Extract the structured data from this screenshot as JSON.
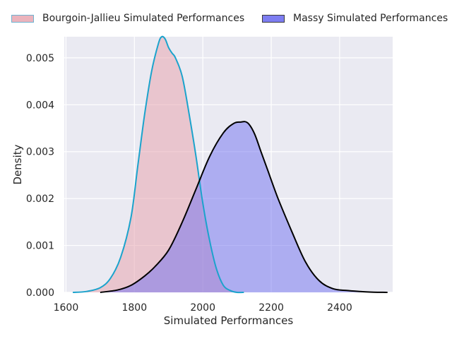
{
  "chart_data": {
    "type": "area",
    "title": "",
    "xlabel": "Simulated Performances",
    "ylabel": "Density",
    "xlim": [
      1595,
      2555
    ],
    "ylim": [
      0,
      0.00545
    ],
    "x_ticks": [
      1600,
      1800,
      2000,
      2200,
      2400
    ],
    "x_tick_labels": [
      "1600",
      "1800",
      "2000",
      "2200",
      "2400"
    ],
    "y_ticks": [
      0,
      0.001,
      0.002,
      0.003,
      0.004,
      0.005
    ],
    "y_tick_labels": [
      "0.000",
      "0.001",
      "0.002",
      "0.003",
      "0.004",
      "0.005"
    ],
    "grid": true,
    "legend_position": "top",
    "series": [
      {
        "name": "Bourgoin-Jallieu Simulated Performances",
        "fill_color": "#e8a6b0",
        "line_color": "#1ba3cc",
        "x": [
          1620,
          1660,
          1700,
          1730,
          1760,
          1790,
          1810,
          1830,
          1850,
          1870,
          1880,
          1890,
          1900,
          1910,
          1920,
          1940,
          1960,
          1980,
          2000,
          2020,
          2040,
          2060,
          2080,
          2100,
          2120
        ],
        "y": [
          0.0,
          2e-05,
          0.0001,
          0.0003,
          0.00075,
          0.0016,
          0.0027,
          0.0038,
          0.0047,
          0.0053,
          0.00545,
          0.0054,
          0.00522,
          0.0051,
          0.005,
          0.0046,
          0.0038,
          0.0029,
          0.0019,
          0.0011,
          0.0005,
          0.00015,
          4e-05,
          0.0,
          0.0
        ]
      },
      {
        "name": "Massy Simulated Performances",
        "fill_color": "#6f6ff0",
        "line_color": "#000000",
        "x": [
          1700,
          1750,
          1790,
          1830,
          1860,
          1900,
          1940,
          1980,
          2020,
          2060,
          2090,
          2110,
          2130,
          2150,
          2170,
          2190,
          2220,
          2260,
          2300,
          2340,
          2380,
          2420,
          2460,
          2500,
          2540
        ],
        "y": [
          0.0,
          5e-05,
          0.00015,
          0.00035,
          0.00055,
          0.0009,
          0.0015,
          0.0022,
          0.0029,
          0.0034,
          0.0036,
          0.00363,
          0.00362,
          0.0034,
          0.003,
          0.0026,
          0.002,
          0.0013,
          0.00065,
          0.00025,
          8e-05,
          4e-05,
          2e-05,
          5e-06,
          0.0
        ]
      }
    ]
  }
}
